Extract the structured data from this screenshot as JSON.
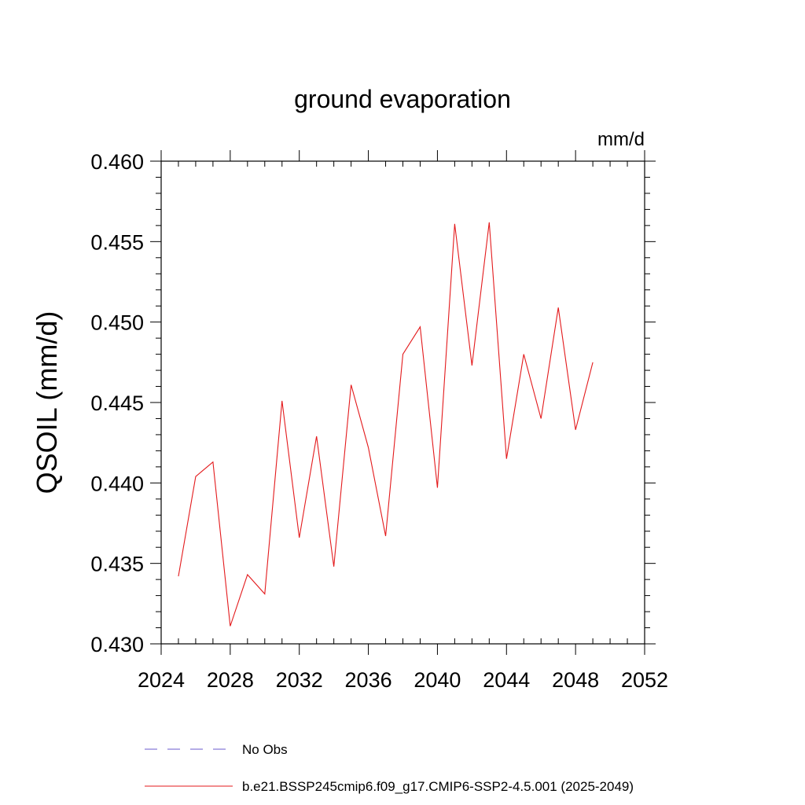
{
  "chart_data": {
    "type": "line",
    "title": "ground evaporation",
    "units_label": "mm/d",
    "ylabel": "QSOIL  (mm/d)",
    "xlabel": "",
    "xlim": [
      2024,
      2052
    ],
    "ylim": [
      0.43,
      0.46
    ],
    "x_ticks": [
      2024,
      2028,
      2032,
      2036,
      2040,
      2044,
      2048,
      2052
    ],
    "x_tick_labels": [
      "2024",
      "2028",
      "2032",
      "2036",
      "2040",
      "2044",
      "2048",
      "2052"
    ],
    "y_ticks": [
      0.43,
      0.435,
      0.44,
      0.445,
      0.45,
      0.455,
      0.46
    ],
    "y_tick_labels": [
      "0.430",
      "0.435",
      "0.440",
      "0.445",
      "0.450",
      "0.455",
      "0.460"
    ],
    "grid": false,
    "legend_position": "bottom",
    "series": [
      {
        "name": "b.e21.BSSP245cmip6.f09_g17.CMIP6-SSP2-4.5.001 (2025-2049)",
        "color": "#e31a1c",
        "dash": "solid",
        "x": [
          2025,
          2026,
          2027,
          2028,
          2029,
          2030,
          2031,
          2032,
          2033,
          2034,
          2035,
          2036,
          2037,
          2038,
          2039,
          2040,
          2041,
          2042,
          2043,
          2044,
          2045,
          2046,
          2047,
          2048,
          2049
        ],
        "values": [
          0.4342,
          0.4404,
          0.4413,
          0.4311,
          0.4343,
          0.4331,
          0.4451,
          0.4366,
          0.4429,
          0.4348,
          0.4461,
          0.4422,
          0.4367,
          0.448,
          0.4497,
          0.4397,
          0.4561,
          0.4473,
          0.4562,
          0.4415,
          0.448,
          0.444,
          0.4509,
          0.4433,
          0.4475
        ]
      }
    ],
    "legend": [
      {
        "label": "No Obs",
        "color": "#6a5acd",
        "dash": "dashed"
      },
      {
        "label": "b.e21.BSSP245cmip6.f09_g17.CMIP6-SSP2-4.5.001 (2025-2049)",
        "color": "#e31a1c",
        "dash": "solid"
      }
    ]
  }
}
